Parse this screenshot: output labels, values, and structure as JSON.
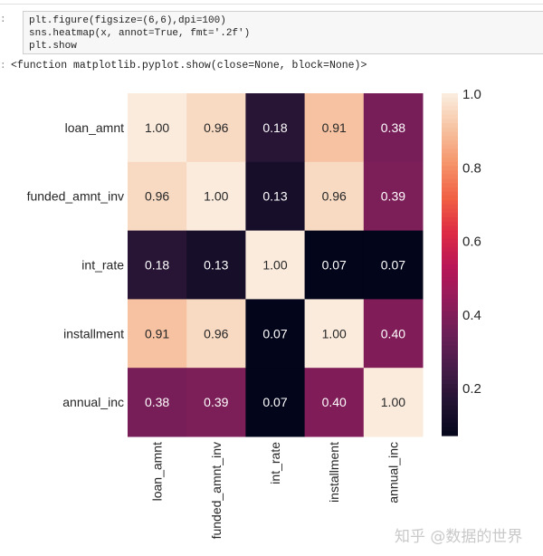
{
  "code_cell": {
    "lines": [
      "plt.figure(figsize=(6,6),dpi=100)",
      "sns.heatmap(x, annot=True, fmt='.2f')",
      "plt.show"
    ]
  },
  "output_text": "<function matplotlib.pyplot.show(close=None, block=None)>",
  "watermark": "知乎 @数据的世界",
  "chart_data": {
    "type": "heatmap",
    "colormap": "rocket",
    "labels": [
      "loan_amnt",
      "funded_amnt_inv",
      "int_rate",
      "installment",
      "annual_inc"
    ],
    "values": [
      [
        1.0,
        0.96,
        0.18,
        0.91,
        0.38
      ],
      [
        0.96,
        1.0,
        0.13,
        0.96,
        0.39
      ],
      [
        0.18,
        0.13,
        1.0,
        0.07,
        0.07
      ],
      [
        0.91,
        0.96,
        0.07,
        1.0,
        0.4
      ],
      [
        0.38,
        0.39,
        0.07,
        0.4,
        1.0
      ]
    ],
    "vmin": 0.07,
    "vmax": 1.0,
    "colorbar_ticks": [
      "0.2",
      "0.4",
      "0.6",
      "0.8",
      "1.0"
    ],
    "annot_format": ".2f"
  }
}
